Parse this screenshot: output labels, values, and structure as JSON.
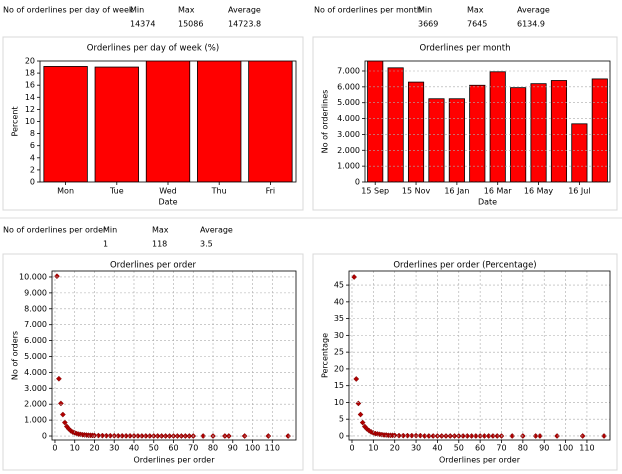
{
  "stats": [
    {
      "label": "No of orderlines per day of week",
      "headers": [
        "Min",
        "Max",
        "Average"
      ],
      "values": [
        14374,
        15086,
        14723.8
      ]
    },
    {
      "label": "No of orderlines per month",
      "headers": [
        "Min",
        "Max",
        "Average"
      ],
      "values": [
        3669,
        7645,
        6134.9
      ]
    },
    {
      "label": "No of orderlines per order",
      "headers": [
        "Min",
        "Max",
        "Average"
      ],
      "values": [
        1,
        118,
        3.5
      ]
    }
  ],
  "chart_data": [
    {
      "type": "bar",
      "title": "Orderlines per day of week (%)",
      "xlabel": "Date",
      "ylabel": "Percent",
      "categories": [
        "Mon",
        "Tue",
        "Wed",
        "Thu",
        "Fri"
      ],
      "values": [
        19.1,
        19.0,
        20.5,
        20.5,
        20.5
      ],
      "color": "#ff0000",
      "ylim": [
        0,
        20
      ],
      "yticks": [
        0,
        2,
        4,
        6,
        8,
        10,
        12,
        14,
        16,
        18,
        20
      ],
      "grid": false
    },
    {
      "type": "bar",
      "title": "Orderlines per month",
      "xlabel": "Date",
      "ylabel": "No of orderlines",
      "categories": [
        "15 Sep",
        null,
        "15 Nov",
        null,
        "16 Jan",
        null,
        "16 Mar",
        null,
        "16 May",
        null,
        "16 Jul",
        null
      ],
      "values": [
        7645,
        7200,
        6300,
        5250,
        5250,
        6100,
        6950,
        5950,
        6200,
        6400,
        3669,
        6500
      ],
      "color": "#ff0000",
      "ylim": [
        0,
        7630
      ],
      "yticks": [
        0,
        {
          "value": 1000,
          "label": "1.000"
        },
        {
          "value": 2000,
          "label": "2.000"
        },
        {
          "value": 3000,
          "label": "3.000"
        },
        {
          "value": 4000,
          "label": "4.000"
        },
        {
          "value": 5000,
          "label": "5.000"
        },
        {
          "value": 6000,
          "label": "6.000"
        },
        {
          "value": 7000,
          "label": "7.000"
        }
      ],
      "grid": true
    },
    {
      "type": "scatter",
      "title": "Orderlines per order",
      "xlabel": "Orderlines per order",
      "ylabel": "No of orders",
      "x": [
        1,
        2,
        3,
        4,
        5,
        6,
        7,
        8,
        9,
        10,
        11,
        12,
        13,
        14,
        15,
        16,
        17,
        18,
        19,
        20,
        22,
        24,
        26,
        28,
        30,
        32,
        34,
        36,
        38,
        40,
        42,
        44,
        46,
        48,
        50,
        52,
        54,
        56,
        58,
        60,
        62,
        64,
        66,
        68,
        70,
        75,
        80,
        86,
        88,
        96,
        108,
        118
      ],
      "values": [
        10050,
        3600,
        2050,
        1350,
        850,
        600,
        450,
        330,
        250,
        200,
        150,
        120,
        100,
        80,
        70,
        60,
        50,
        45,
        40,
        35,
        30,
        25,
        20,
        18,
        15,
        12,
        10,
        9,
        8,
        7,
        6,
        5,
        5,
        4,
        4,
        3,
        3,
        2,
        2,
        2,
        2,
        1,
        1,
        1,
        1,
        1,
        1,
        1,
        1,
        1,
        1,
        1
      ],
      "color": "#b00000",
      "xlim": [
        -1.5,
        122
      ],
      "ylim": [
        -250,
        10375
      ],
      "xticks": [
        0,
        10,
        20,
        30,
        40,
        50,
        60,
        70,
        80,
        90,
        100,
        110
      ],
      "yticks": [
        0,
        {
          "value": 1000,
          "label": "1.000"
        },
        {
          "value": 2000,
          "label": "2.000"
        },
        {
          "value": 3000,
          "label": "3.000"
        },
        {
          "value": 4000,
          "label": "4.000"
        },
        {
          "value": 5000,
          "label": "5.000"
        },
        {
          "value": 6000,
          "label": "6.000"
        },
        {
          "value": 7000,
          "label": "7.000"
        },
        {
          "value": 8000,
          "label": "8.000"
        },
        {
          "value": 9000,
          "label": "9.000"
        },
        {
          "value": 10000,
          "label": "10.000"
        }
      ],
      "grid": true
    },
    {
      "type": "scatter",
      "title": "Orderlines per order (Percentage)",
      "xlabel": "Orderlines per order",
      "ylabel": "Percentage",
      "x": [
        1,
        2,
        3,
        4,
        5,
        6,
        7,
        8,
        9,
        10,
        11,
        12,
        13,
        14,
        15,
        16,
        17,
        18,
        19,
        20,
        22,
        24,
        26,
        28,
        30,
        32,
        34,
        36,
        38,
        40,
        42,
        44,
        46,
        48,
        50,
        52,
        54,
        56,
        58,
        60,
        62,
        64,
        66,
        68,
        70,
        75,
        80,
        86,
        88,
        96,
        108,
        118
      ],
      "values": [
        47.4,
        17.0,
        9.7,
        6.4,
        4.0,
        2.8,
        2.1,
        1.6,
        1.2,
        0.9,
        0.7,
        0.6,
        0.5,
        0.4,
        0.3,
        0.3,
        0.2,
        0.2,
        0.2,
        0.2,
        0.1,
        0.1,
        0.1,
        0.1,
        0.1,
        0.1,
        0,
        0,
        0,
        0,
        0,
        0,
        0,
        0,
        0,
        0,
        0,
        0,
        0,
        0,
        0,
        0,
        0,
        0,
        0,
        0,
        0,
        0,
        0,
        0,
        0,
        0
      ],
      "color": "#b00000",
      "xlim": [
        -1.4,
        120.8
      ],
      "ylim": [
        -1.2,
        49.2
      ],
      "xticks": [
        0,
        10,
        20,
        30,
        40,
        50,
        60,
        70,
        80,
        90,
        100,
        110
      ],
      "yticks": [
        0,
        5,
        10,
        15,
        20,
        25,
        30,
        35,
        40,
        45
      ],
      "grid": true
    }
  ]
}
